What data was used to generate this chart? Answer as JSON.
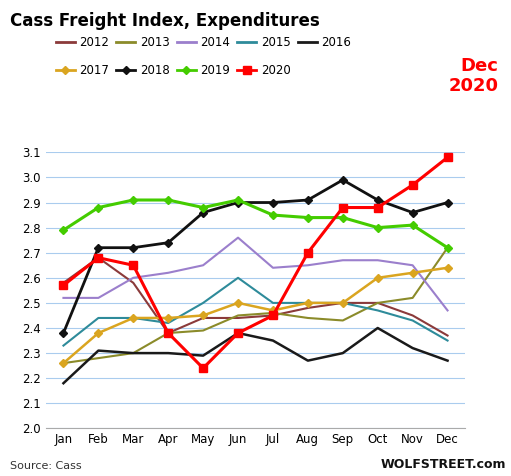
{
  "title": "Cass Freight Index, Expenditures",
  "months": [
    "Jan",
    "Feb",
    "Mar",
    "Apr",
    "May",
    "Jun",
    "Jul",
    "Aug",
    "Sep",
    "Oct",
    "Nov",
    "Dec"
  ],
  "series": {
    "2012": [
      2.58,
      2.68,
      2.58,
      2.38,
      2.44,
      2.44,
      2.45,
      2.48,
      2.5,
      2.5,
      2.45,
      2.37
    ],
    "2013": [
      2.26,
      2.28,
      2.3,
      2.38,
      2.39,
      2.45,
      2.46,
      2.44,
      2.43,
      2.5,
      2.52,
      2.72
    ],
    "2014": [
      2.52,
      2.52,
      2.6,
      2.62,
      2.65,
      2.76,
      2.64,
      2.65,
      2.67,
      2.67,
      2.65,
      2.47
    ],
    "2015": [
      2.33,
      2.44,
      2.44,
      2.42,
      2.5,
      2.6,
      2.5,
      2.5,
      2.5,
      2.47,
      2.43,
      2.35
    ],
    "2016": [
      2.18,
      2.31,
      2.3,
      2.3,
      2.29,
      2.38,
      2.35,
      2.27,
      2.3,
      2.4,
      2.32,
      2.27
    ],
    "2017": [
      2.26,
      2.38,
      2.44,
      2.44,
      2.45,
      2.5,
      2.47,
      2.5,
      2.5,
      2.6,
      2.62,
      2.64
    ],
    "2018": [
      2.38,
      2.72,
      2.72,
      2.74,
      2.86,
      2.9,
      2.9,
      2.91,
      2.99,
      2.91,
      2.86,
      2.9
    ],
    "2019": [
      2.79,
      2.88,
      2.91,
      2.91,
      2.88,
      2.91,
      2.85,
      2.84,
      2.84,
      2.8,
      2.81,
      2.72
    ],
    "2020": [
      2.57,
      2.68,
      2.65,
      2.38,
      2.24,
      2.38,
      2.45,
      2.7,
      2.88,
      2.88,
      2.97,
      3.08
    ]
  },
  "colors": {
    "2012": "#8B3A3A",
    "2013": "#8B8B2A",
    "2014": "#9B7FCC",
    "2015": "#2E8B9A",
    "2016": "#1A1A1A",
    "2017": "#DAA520",
    "2018": "#111111",
    "2019": "#44CC00",
    "2020": "#FF0000"
  },
  "markers": {
    "2012": "none",
    "2013": "none",
    "2014": "none",
    "2015": "none",
    "2016": "none",
    "2017": "D",
    "2018": "D",
    "2019": "D",
    "2020": "s"
  },
  "linewidths": {
    "2012": 1.5,
    "2013": 1.5,
    "2014": 1.5,
    "2015": 1.5,
    "2016": 1.8,
    "2017": 1.8,
    "2018": 2.0,
    "2019": 2.2,
    "2020": 2.2
  },
  "ylim": [
    2.0,
    3.1
  ],
  "yticks": [
    2.0,
    2.1,
    2.2,
    2.3,
    2.4,
    2.5,
    2.6,
    2.7,
    2.8,
    2.9,
    3.0,
    3.1
  ],
  "annotation_text": "Dec\n2020",
  "annotation_color": "#FF0000",
  "source_text": "Source: Cass",
  "wolfstreet_text": "WOLFSTREET.com",
  "background_color": "#FFFFFF",
  "grid_color": "#AACCEE",
  "legend_row1": [
    "2012",
    "2013",
    "2014",
    "2015",
    "2016"
  ],
  "legend_row2": [
    "2017",
    "2018",
    "2019",
    "2020"
  ]
}
